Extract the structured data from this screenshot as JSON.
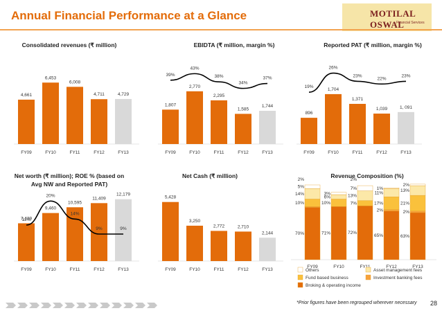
{
  "header": {
    "title": "Annual Financial Performance at a Glance",
    "logo_text": "MOTILAL OSWAL",
    "logo_sub": "Financial Services"
  },
  "footer": {
    "note": "*Prior figures have been regrouped wherever necessary",
    "page": "28"
  },
  "colors": {
    "orange": "#E36C0A",
    "grey": "#D9D9D9",
    "yellow": "#FAC13C",
    "light_yellow": "#FCE8A8"
  },
  "chart_data": [
    {
      "type": "bar",
      "title": "Consolidated revenues (₹ million)",
      "categories": [
        "FY09",
        "FY10",
        "FY11",
        "FY12",
        "FY13"
      ],
      "values": [
        4661,
        6453,
        6008,
        4711,
        4729
      ],
      "labels": [
        "4,661",
        "6,453",
        "6,008",
        "4,711",
        "4,729"
      ],
      "ylim": [
        0,
        8000
      ]
    },
    {
      "type": "bar",
      "title": "EBIDTA (₹ million, margin %)",
      "categories": [
        "FY09",
        "FY10",
        "FY11",
        "FY12",
        "FY13"
      ],
      "values": [
        1807,
        2770,
        2295,
        1585,
        1744
      ],
      "labels": [
        "1,807",
        "2,770",
        "2,295",
        "1,585",
        "1,744"
      ],
      "ylim": [
        0,
        4000
      ],
      "line": {
        "name": "margin",
        "values": [
          39,
          43,
          38,
          34,
          37
        ],
        "labels": [
          "39%",
          "43%",
          "38%",
          "34%",
          "37%"
        ],
        "ylim": [
          0,
          55
        ]
      }
    },
    {
      "type": "bar",
      "title": "Reported PAT (₹ million, margin %)",
      "categories": [
        "FY09",
        "FY10",
        "FY11",
        "FY12",
        "FY13"
      ],
      "values": [
        896,
        1704,
        1371,
        1039,
        1091
      ],
      "labels": [
        "896",
        "1,704",
        "1,371",
        "1,039",
        "1, 091"
      ],
      "ylim": [
        0,
        2600
      ],
      "line": {
        "name": "margin",
        "values": [
          19,
          26,
          23,
          22,
          23
        ],
        "labels": [
          "19%",
          "26%",
          "23%",
          "22%",
          "23%"
        ],
        "ylim": [
          0,
          33
        ]
      }
    },
    {
      "type": "bar",
      "title": "Net worth (₹ million); ROE % (based on",
      "title2": "Avg NW and Reported PAT)",
      "categories": [
        "FY09",
        "FY10",
        "FY11",
        "FY12",
        "FY13"
      ],
      "values": [
        7439,
        9460,
        10595,
        11409,
        12179
      ],
      "labels": [
        "7,439",
        "9,460",
        "10,595",
        "11,409",
        "12,179"
      ],
      "ylim": [
        0,
        15000
      ],
      "line": {
        "name": "ROE",
        "values": [
          12,
          20,
          14,
          9,
          9
        ],
        "labels": [
          "12%",
          "20%",
          "14%",
          "9%",
          "9%"
        ],
        "ylim": [
          0,
          30
        ]
      }
    },
    {
      "type": "bar",
      "title": "Net Cash (₹ million)",
      "categories": [
        "FY09",
        "FY10",
        "FY11",
        "FY12",
        "FY13"
      ],
      "values": [
        5428,
        3250,
        2772,
        2710,
        2144
      ],
      "labels": [
        "5,428",
        "3,250",
        "2,772",
        "2,710",
        "2,144"
      ],
      "ylim": [
        0,
        7000
      ]
    },
    {
      "type": "stacked-bar",
      "title": "Revenue Composition (%)",
      "categories": [
        "FY09",
        "FY10",
        "FY11",
        "FY12",
        "FY13"
      ],
      "series": [
        {
          "name": "Broking & operating income",
          "values": [
            70,
            71,
            72,
            65,
            63
          ],
          "labels": [
            "70%",
            "71%",
            "72%",
            "65%",
            "63%"
          ]
        },
        {
          "name": "Investment banking fees",
          "values": [
            1,
            0,
            0,
            2,
            2
          ],
          "labels": [
            "",
            "",
            "",
            "2%",
            "2%"
          ]
        },
        {
          "name": "Fund based business",
          "values": [
            10,
            10,
            7,
            17,
            21
          ],
          "labels": [
            "10%",
            "10%",
            "7%",
            "17%",
            "21%"
          ]
        },
        {
          "name": "Asset management fees",
          "values": [
            14,
            6,
            13,
            11,
            13
          ],
          "labels": [
            "14%",
            "6%",
            "13%",
            "11%",
            "13%"
          ]
        },
        {
          "name": "Others",
          "values": [
            5,
            3,
            7,
            1,
            2
          ],
          "labels": [
            "5%",
            "3%",
            "7%",
            "1%",
            "2%"
          ]
        }
      ],
      "extra_labels": [
        "2%",
        "",
        "2%",
        "",
        ""
      ],
      "ylim": [
        0,
        100
      ]
    }
  ]
}
